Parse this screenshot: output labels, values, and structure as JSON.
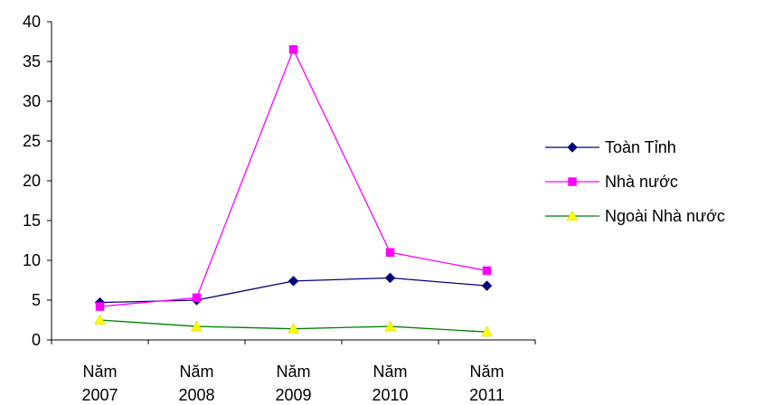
{
  "chart_data": {
    "type": "line",
    "title": "",
    "xlabel": "",
    "ylabel": "",
    "categories": [
      [
        "Năm",
        "2007"
      ],
      [
        "Năm",
        "2008"
      ],
      [
        "Năm",
        "2009"
      ],
      [
        "Năm",
        "2010"
      ],
      [
        "Năm",
        "2011"
      ]
    ],
    "ylim": [
      0,
      40
    ],
    "yticks": [
      "0",
      "5",
      "10",
      "15",
      "20",
      "25",
      "30",
      "35",
      "40"
    ],
    "grid": false,
    "legend_position": "right",
    "series": [
      {
        "name": "Toàn Tỉnh",
        "values": [
          4.7,
          5.0,
          7.4,
          7.8,
          6.8
        ],
        "color": "#000080",
        "marker": "diamond"
      },
      {
        "name": "Nhà nước",
        "values": [
          4.2,
          5.3,
          36.5,
          11.0,
          8.7
        ],
        "color": "#ff00ff",
        "marker": "square"
      },
      {
        "name": "Ngoài Nhà nước",
        "values": [
          2.5,
          1.7,
          1.4,
          1.7,
          1.0
        ],
        "color": "#008000",
        "marker": "triangle",
        "marker_color": "#ffff00"
      }
    ]
  }
}
